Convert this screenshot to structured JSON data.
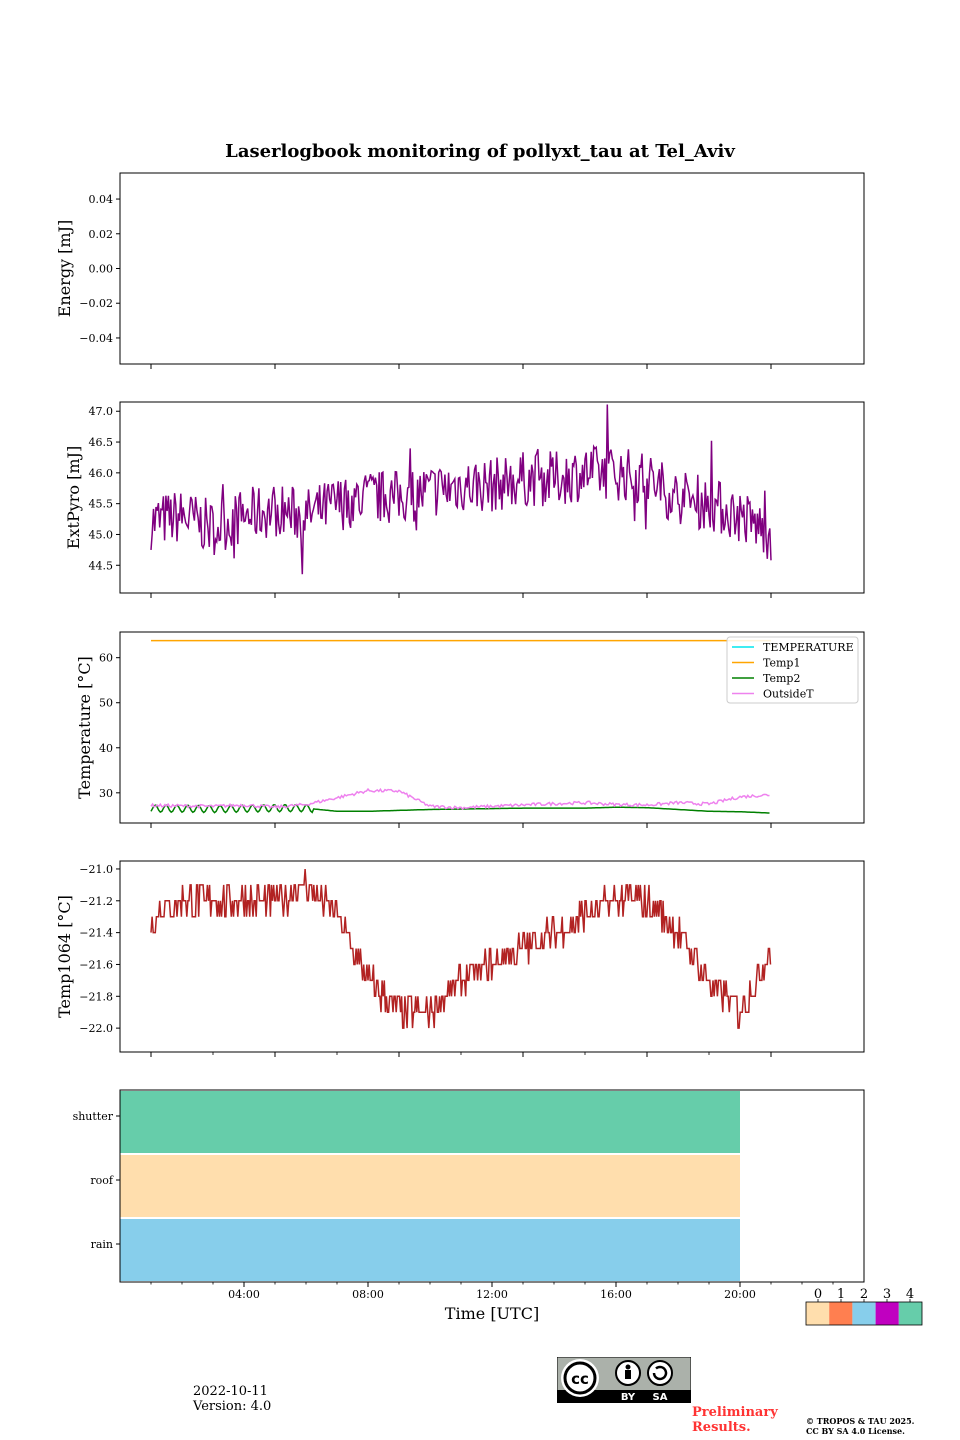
{
  "title": "Laserlogbook monitoring of pollyxt_tau at Tel_Aviv",
  "footer": {
    "date": "2022-10-11",
    "version": "Version: 4.0",
    "preliminary_line1": "Preliminary",
    "preliminary_line2": "Results.",
    "copyright_line1": "© TROPOS & TAU 2025.",
    "copyright_line2": "CC BY SA 4.0 License.",
    "license_badge": {
      "text_by": "BY",
      "text_sa": "SA",
      "icon": "cc-by-sa-icon"
    }
  },
  "chart_data": [
    {
      "type": "line",
      "panel": "energy",
      "ylabel": "Energy [mJ]",
      "ylim": [
        -0.055,
        0.055
      ],
      "yticks": [
        -0.04,
        -0.02,
        0.0,
        0.02,
        0.04
      ],
      "ytick_labels": [
        "−0.04",
        "−0.02",
        "0.00",
        "0.02",
        "0.04"
      ],
      "series": []
    },
    {
      "type": "line",
      "panel": "extpyro",
      "ylabel": "ExtPyro [mJ]",
      "ylim": [
        44.05,
        47.15
      ],
      "yticks": [
        44.5,
        45.0,
        45.5,
        46.0,
        46.5,
        47.0
      ],
      "ytick_labels": [
        "44.5",
        "45.0",
        "45.5",
        "46.0",
        "46.5",
        "47.0"
      ],
      "series": [
        {
          "color": "#800080",
          "x": [
            1.0,
            2.0,
            3.0,
            4.0,
            5.0,
            6.0,
            7.0,
            8.0,
            9.0,
            10.0,
            11.0,
            12.0,
            13.0,
            14.0,
            15.0,
            16.0,
            17.0,
            18.0,
            19.0,
            20.0,
            21.0
          ],
          "y": [
            45.2,
            45.3,
            45.1,
            45.3,
            45.4,
            45.3,
            45.5,
            45.6,
            45.6,
            45.7,
            45.8,
            45.8,
            45.9,
            45.9,
            46.0,
            46.0,
            45.9,
            45.6,
            45.5,
            45.3,
            45.0
          ]
        }
      ]
    },
    {
      "type": "line",
      "panel": "temperature",
      "ylabel": "Temperature [°C]",
      "ylim": [
        23.3,
        65.7
      ],
      "yticks": [
        30,
        40,
        50,
        60
      ],
      "ytick_labels": [
        "30",
        "40",
        "50",
        "60"
      ],
      "legend": "top-right",
      "series": [
        {
          "name": "TEMPERATURE",
          "color": "#00e5ee",
          "x": [],
          "y": []
        },
        {
          "name": "Temp1",
          "color": "#ffa500",
          "x": [
            1.0,
            21.0
          ],
          "y": [
            63.8,
            63.8
          ]
        },
        {
          "name": "Temp2",
          "color": "#008000",
          "x": [
            1.0,
            2.0,
            3.0,
            4.0,
            5.0,
            6.0,
            7.0,
            8.0,
            9.0,
            10.0,
            11.0,
            12.0,
            13.0,
            14.0,
            15.0,
            16.0,
            17.0,
            18.0,
            19.0,
            20.0,
            21.0
          ],
          "y": [
            26.5,
            26.5,
            26.4,
            26.5,
            26.6,
            26.6,
            25.9,
            25.9,
            26.1,
            26.3,
            26.4,
            26.5,
            26.6,
            26.6,
            26.6,
            26.8,
            26.7,
            26.3,
            25.9,
            25.8,
            25.5
          ]
        },
        {
          "name": "OutsideT",
          "color": "#ee82ee",
          "x": [
            1.0,
            2.0,
            3.0,
            4.0,
            5.0,
            6.0,
            7.0,
            8.0,
            9.0,
            10.0,
            11.0,
            12.0,
            13.0,
            14.0,
            15.0,
            16.0,
            17.0,
            18.0,
            19.0,
            20.0,
            21.0
          ],
          "y": [
            27.2,
            27.1,
            27.0,
            27.3,
            26.8,
            27.4,
            28.9,
            30.5,
            30.4,
            27.0,
            26.7,
            27.0,
            27.3,
            27.6,
            27.8,
            27.4,
            27.3,
            27.8,
            27.5,
            29.1,
            29.6
          ]
        }
      ]
    },
    {
      "type": "line",
      "panel": "temp1064",
      "ylabel": "Temp1064 [°C]",
      "ylim": [
        -22.15,
        -20.95
      ],
      "yticks": [
        -22.0,
        -21.8,
        -21.6,
        -21.4,
        -21.2,
        -21.0
      ],
      "ytick_labels": [
        "−22.0",
        "−21.8",
        "−21.6",
        "−21.4",
        "−21.2",
        "−21.0"
      ],
      "series": [
        {
          "color": "#b22222",
          "x": [
            1.0,
            2.0,
            3.0,
            4.0,
            5.0,
            6.0,
            7.0,
            8.0,
            9.0,
            10.0,
            11.0,
            12.0,
            13.0,
            14.0,
            15.0,
            16.0,
            17.0,
            18.0,
            19.0,
            20.0,
            21.0
          ],
          "y": [
            -21.3,
            -21.2,
            -21.2,
            -21.2,
            -21.2,
            -21.1,
            -21.3,
            -21.7,
            -21.9,
            -21.9,
            -21.7,
            -21.6,
            -21.5,
            -21.4,
            -21.3,
            -21.2,
            -21.2,
            -21.4,
            -21.7,
            -21.9,
            -21.5
          ]
        }
      ]
    },
    {
      "type": "heatmap",
      "panel": "status",
      "xlabel": "Time [UTC]",
      "rows": [
        "shutter",
        "roof",
        "rain"
      ],
      "xlim": [
        0,
        24
      ],
      "xticks": [
        4,
        8,
        12,
        16,
        20
      ],
      "xtick_labels": [
        "04:00",
        "08:00",
        "12:00",
        "16:00",
        "20:00"
      ],
      "segments": [
        {
          "row": "shutter",
          "x0": 0,
          "x1": 20,
          "value": 4
        },
        {
          "row": "roof",
          "x0": 0,
          "x1": 20,
          "value": 0
        },
        {
          "row": "rain",
          "x0": 0,
          "x1": 20,
          "value": 2
        }
      ],
      "colorbar": {
        "labels": [
          "0",
          "1",
          "2",
          "3",
          "4"
        ],
        "colors": [
          "#ffdead",
          "#ff7f50",
          "#87ceeb",
          "#c000c0",
          "#66cdaa"
        ]
      }
    }
  ]
}
